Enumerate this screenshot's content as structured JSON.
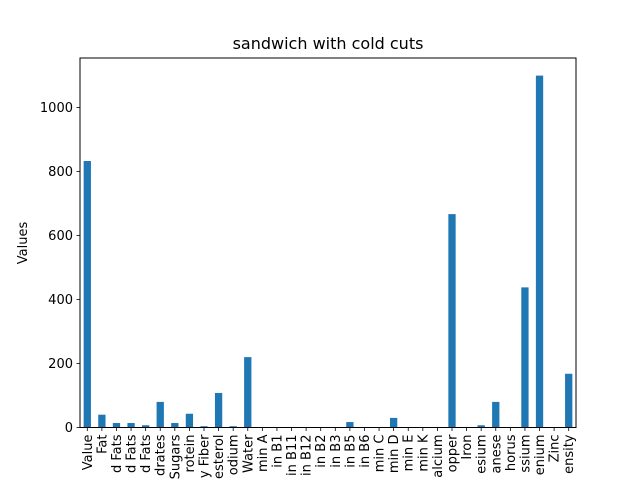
{
  "chart_data": {
    "type": "bar",
    "title": "sandwich with cold cuts",
    "xlabel": "",
    "ylabel": "Values",
    "ylim": [
      0,
      1155
    ],
    "yticks": [
      0,
      200,
      400,
      600,
      800,
      1000
    ],
    "categories": [
      "Value",
      "Fat",
      "d Fats",
      "d Fats",
      "d Fats",
      "drates",
      "Sugars",
      "rotein",
      "y Fiber",
      "esterol",
      "odium",
      "Water",
      "min A",
      "in B1",
      "in B11",
      "in B12",
      "in B2",
      "in B3",
      "in B5",
      "in B6",
      "min C",
      "min D",
      "min E",
      "min K",
      "alcium",
      "opper",
      "Iron",
      "esium",
      "anese",
      "horus",
      "ssium",
      "enium",
      "Zinc",
      "ensity"
    ],
    "values": [
      833,
      40,
      14,
      14,
      7,
      80,
      14,
      43,
      4,
      108,
      4,
      220,
      0,
      0,
      0,
      0,
      0,
      0,
      17,
      0,
      0,
      30,
      0,
      0,
      0,
      667,
      0,
      7,
      80,
      0,
      438,
      1100,
      0,
      168
    ],
    "bar_color": "#1f77b4",
    "grid": false,
    "legend": "none"
  }
}
